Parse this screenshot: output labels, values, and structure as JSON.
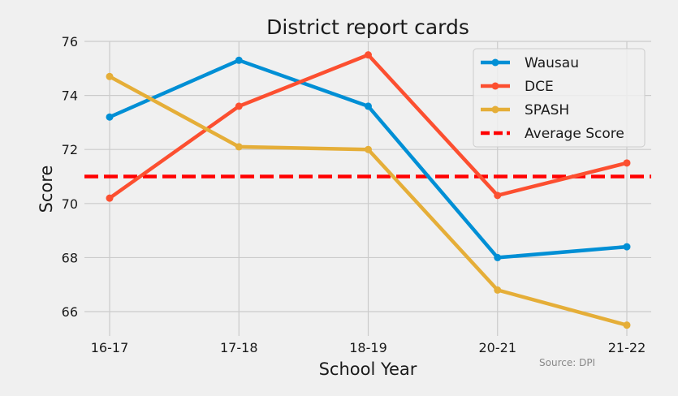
{
  "chart_data": {
    "type": "line",
    "title": "District report cards",
    "xlabel": "School Year",
    "ylabel": "Score",
    "categories": [
      "16-17",
      "17-18",
      "18-19",
      "20-21",
      "21-22"
    ],
    "ylim": [
      65.1,
      76
    ],
    "yticks": [
      66,
      68,
      70,
      72,
      74,
      76
    ],
    "grid": true,
    "legend_position": "top-right",
    "series": [
      {
        "name": "Wausau",
        "values": [
          73.2,
          75.3,
          73.6,
          68.0,
          68.4
        ],
        "color": "#008fd5"
      },
      {
        "name": "DCE",
        "values": [
          70.2,
          73.6,
          75.5,
          70.3,
          71.5
        ],
        "color": "#fc4f30"
      },
      {
        "name": "SPASH",
        "values": [
          74.7,
          72.1,
          72.0,
          66.8,
          65.5
        ],
        "color": "#e5ae38"
      }
    ],
    "reference_line": {
      "name": "Average Score",
      "value": 71,
      "color": "#ff0000",
      "style": "dashed"
    },
    "annotation": "Source: DPI"
  }
}
